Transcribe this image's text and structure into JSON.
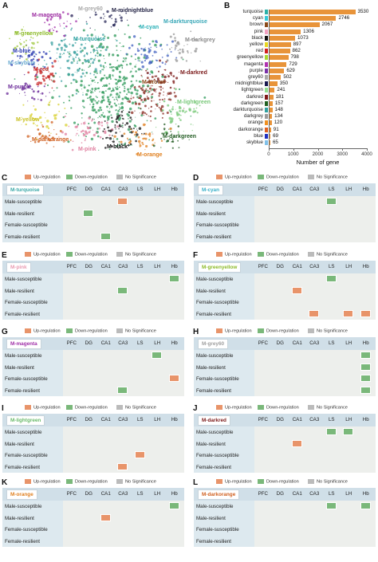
{
  "panel_a": {
    "label": "A",
    "modules": [
      {
        "text": "M-grey60",
        "color": "#a8a8a8",
        "left": 98,
        "top": 8
      },
      {
        "text": "M-midnightblue",
        "color": "#222244",
        "left": 140,
        "top": 10
      },
      {
        "text": "M-darkturquoise",
        "color": "#3aa8b8",
        "left": 205,
        "top": 24
      },
      {
        "text": "M-magenta",
        "color": "#9b2aa0",
        "left": 40,
        "top": 16
      },
      {
        "text": "M-cyan",
        "color": "#2ab0b8",
        "left": 175,
        "top": 31
      },
      {
        "text": "M-greenyellow",
        "color": "#8cba28",
        "left": 18,
        "top": 39
      },
      {
        "text": "M-turquoise",
        "color": "#2aa0a0",
        "left": 92,
        "top": 46
      },
      {
        "text": "M-darkgrey",
        "color": "#8a8a8a",
        "left": 232,
        "top": 47
      },
      {
        "text": "M-blue",
        "color": "#2a3ab0",
        "left": 16,
        "top": 61
      },
      {
        "text": "M-skyblue",
        "color": "#6aaad0",
        "left": 10,
        "top": 76
      },
      {
        "text": "M-red",
        "color": "#c82a2a",
        "left": 42,
        "top": 84
      },
      {
        "text": "M-darkred",
        "color": "#7a1818",
        "left": 226,
        "top": 88
      },
      {
        "text": "M-purple",
        "color": "#6a2a98",
        "left": 10,
        "top": 106
      },
      {
        "text": "M-brown",
        "color": "#8a4a18",
        "left": 178,
        "top": 100
      },
      {
        "text": "M-lightgreen",
        "color": "#78c878",
        "left": 222,
        "top": 125
      },
      {
        "text": "M-yellow",
        "color": "#c8c020",
        "left": 20,
        "top": 147
      },
      {
        "text": "M-darkorange",
        "color": "#d06020",
        "left": 40,
        "top": 172
      },
      {
        "text": "M-darkgreen",
        "color": "#205a20",
        "left": 204,
        "top": 168
      },
      {
        "text": "M-pink",
        "color": "#e080a0",
        "left": 98,
        "top": 184
      },
      {
        "text": "M-black",
        "color": "#111111",
        "left": 134,
        "top": 181
      },
      {
        "text": "M-orange",
        "color": "#e08020",
        "left": 172,
        "top": 191
      }
    ]
  },
  "panel_b": {
    "label": "B",
    "chart_data": {
      "type": "bar",
      "categories": [
        "turquoise",
        "cyan",
        "brown",
        "pink",
        "black",
        "yellow",
        "red",
        "greenyellow",
        "magenta",
        "purple",
        "grey60",
        "midnightblue",
        "lightgreen",
        "darkred",
        "darkgreen",
        "darkturquoise",
        "darkgrey",
        "orange",
        "darkorange",
        "blue",
        "skyblue"
      ],
      "values": [
        3530,
        2746,
        2067,
        1306,
        1073,
        897,
        862,
        798,
        729,
        629,
        502,
        350,
        241,
        181,
        157,
        148,
        134,
        120,
        91,
        69,
        65
      ],
      "swatches": [
        "#2ab0a8",
        "#33c8d8",
        "#8a4a18",
        "#f0a0c0",
        "#111111",
        "#e8d820",
        "#d02020",
        "#a8d830",
        "#b030b0",
        "#7830a8",
        "#a8a8a8",
        "#181850",
        "#90e090",
        "#801818",
        "#206020",
        "#30a0a0",
        "#9a9a9a",
        "#f09020",
        "#e06020",
        "#2030c0",
        "#80c0e8"
      ],
      "bar_color": "#e8943a",
      "xlabel": "Number of gene",
      "ticks": [
        "0",
        "1000",
        "2000",
        "3000",
        "4000"
      ],
      "xlim": [
        0,
        4000
      ]
    }
  },
  "legend": {
    "up": "Up-regulation",
    "down": "Down-regulation",
    "ns": "No Significance",
    "up_color": "#e8946a",
    "down_color": "#7ab87a",
    "ns_color": "#bbbbbb"
  },
  "columns": [
    "PFC",
    "DG",
    "CA1",
    "CA3",
    "LS",
    "LH",
    "Hb"
  ],
  "rows": [
    "Male-susceptible",
    "Male-resilient",
    "Female-susceptible",
    "Female-resilient"
  ],
  "heatmaps": [
    {
      "label": "C",
      "title": "M-turquoise",
      "title_color": "#3aa8a8",
      "cells": [
        [
          0,
          3,
          "up"
        ],
        [
          1,
          1,
          "down"
        ],
        [
          3,
          2,
          "down"
        ]
      ]
    },
    {
      "label": "D",
      "title": "M-cyan",
      "title_color": "#3ab0c8",
      "cells": [
        [
          0,
          4,
          "down"
        ]
      ]
    },
    {
      "label": "E",
      "title": "M-pink",
      "title_color": "#e89ab0",
      "cells": [
        [
          0,
          6,
          "down"
        ],
        [
          1,
          3,
          "down"
        ]
      ]
    },
    {
      "label": "F",
      "title": "M-greenyellow",
      "title_color": "#8cba28",
      "cells": [
        [
          0,
          4,
          "down"
        ],
        [
          1,
          2,
          "up"
        ],
        [
          3,
          3,
          "up"
        ],
        [
          3,
          5,
          "up"
        ],
        [
          3,
          6,
          "up"
        ]
      ]
    },
    {
      "label": "G",
      "title": "M-magenta",
      "title_color": "#a030a8",
      "cells": [
        [
          0,
          5,
          "down"
        ],
        [
          2,
          6,
          "up"
        ],
        [
          3,
          3,
          "down"
        ]
      ]
    },
    {
      "label": "H",
      "title": "M-grey60",
      "title_color": "#a0a0a0",
      "cells": [
        [
          0,
          6,
          "down"
        ],
        [
          1,
          6,
          "down"
        ],
        [
          2,
          6,
          "down"
        ],
        [
          3,
          6,
          "down"
        ]
      ]
    },
    {
      "label": "I",
      "title": "M-lightgreen",
      "title_color": "#6aba6a",
      "cells": [
        [
          2,
          4,
          "up"
        ],
        [
          3,
          3,
          "up"
        ]
      ]
    },
    {
      "label": "J",
      "title": "M-darkred",
      "title_color": "#7a1818",
      "cells": [
        [
          0,
          4,
          "down"
        ],
        [
          0,
          5,
          "down"
        ],
        [
          1,
          2,
          "up"
        ]
      ]
    },
    {
      "label": "K",
      "title": "M-orange",
      "title_color": "#e08020",
      "cells": [
        [
          0,
          6,
          "down"
        ],
        [
          1,
          2,
          "up"
        ]
      ]
    },
    {
      "label": "L",
      "title": "M-darkorange",
      "title_color": "#d06020",
      "cells": [
        [
          0,
          4,
          "down"
        ],
        [
          0,
          6,
          "down"
        ]
      ]
    }
  ]
}
